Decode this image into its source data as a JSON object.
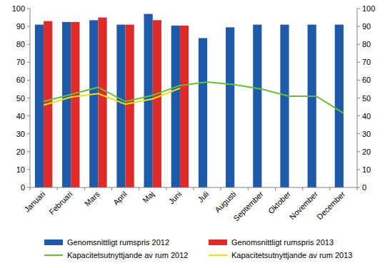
{
  "chart_data": {
    "type": "bar",
    "categories": [
      "Januari",
      "Februari",
      "Mars",
      "April",
      "Maj",
      "Juni",
      "Juli",
      "Augusti",
      "September",
      "Oktober",
      "November",
      "December"
    ],
    "series": [
      {
        "name": "Genomsnittligt rumspris 2012",
        "type": "bar",
        "color": "#1f5aa8",
        "values": [
          91,
          92.5,
          93.5,
          91,
          97,
          90.5,
          83.5,
          89.5,
          91,
          91,
          91,
          91
        ]
      },
      {
        "name": "Genomsnittligt rumspris 2013",
        "type": "bar",
        "color": "#e02b2b",
        "values": [
          93,
          92.5,
          95,
          91,
          93.5,
          90.5,
          null,
          null,
          null,
          null,
          null,
          null
        ]
      },
      {
        "name": "Kapacitetsutnyttjande av rum 2012",
        "type": "line",
        "color": "#66bf3a",
        "values": [
          48,
          52,
          56,
          48,
          51.5,
          57,
          59,
          57.5,
          55,
          51,
          51,
          41.5
        ]
      },
      {
        "name": "Kapacitetsutnyttjande av rum 2013",
        "type": "line",
        "color": "#f2df1a",
        "values": [
          46,
          50.5,
          52.5,
          46.5,
          49.5,
          55.5,
          null,
          null,
          null,
          null,
          null,
          null
        ]
      }
    ],
    "ylim": [
      0,
      100
    ],
    "yticks": [
      0,
      10,
      20,
      30,
      40,
      50,
      60,
      70,
      80,
      90,
      100
    ],
    "y2lim": [
      0,
      100
    ],
    "y2ticks": [
      0,
      10,
      20,
      30,
      40,
      50,
      60,
      70,
      80,
      90,
      100
    ],
    "grid": false,
    "legend": "bottom"
  }
}
